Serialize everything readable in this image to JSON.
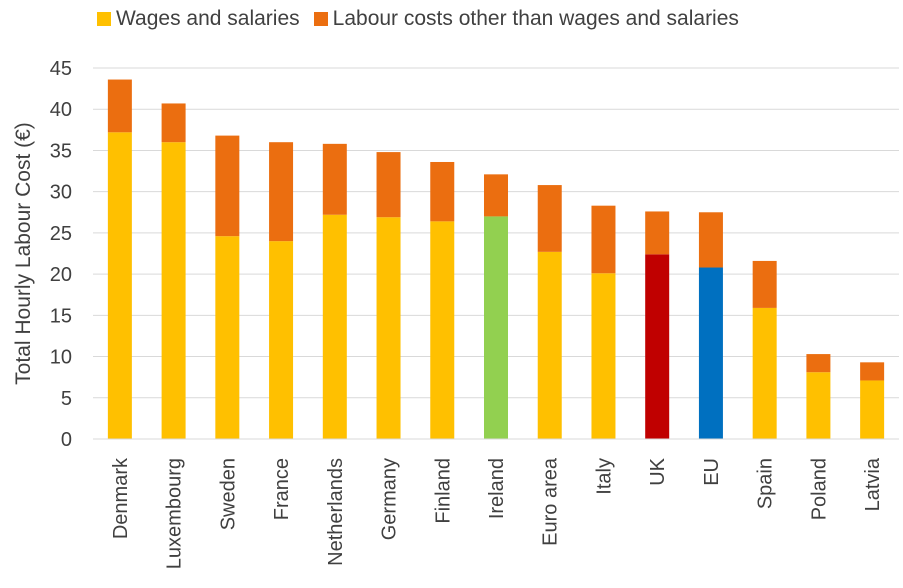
{
  "chart_data": {
    "type": "bar",
    "stacked": true,
    "title": "",
    "xlabel": "",
    "ylabel": "Total Hourly Labour Cost (€)",
    "ylim": [
      0,
      45
    ],
    "yticks": [
      0,
      5,
      10,
      15,
      20,
      25,
      30,
      35,
      40,
      45
    ],
    "grid": true,
    "legend_position": "top",
    "categories": [
      "Denmark",
      "Luxembourg",
      "Sweden",
      "France",
      "Netherlands",
      "Germany",
      "Finland",
      "Ireland",
      "Euro area",
      "Italy",
      "UK",
      "EU",
      "Spain",
      "Poland",
      "Latvia"
    ],
    "series": [
      {
        "name": "Wages and salaries",
        "color": "#FFC000",
        "values": [
          37.2,
          36.0,
          24.6,
          24.0,
          27.2,
          26.9,
          26.4,
          27.0,
          22.7,
          20.1,
          22.4,
          20.8,
          15.9,
          8.1,
          7.1
        ]
      },
      {
        "name": "Labour costs other than wages and salaries",
        "color": "#EB6E10",
        "values": [
          6.4,
          4.7,
          12.2,
          12.0,
          8.6,
          7.9,
          7.2,
          5.1,
          8.1,
          8.2,
          5.2,
          6.7,
          5.7,
          2.2,
          2.2
        ]
      }
    ],
    "highlight_colors": {
      "Ireland": "#92D050",
      "UK": "#C00000",
      "EU": "#0070C0"
    }
  }
}
